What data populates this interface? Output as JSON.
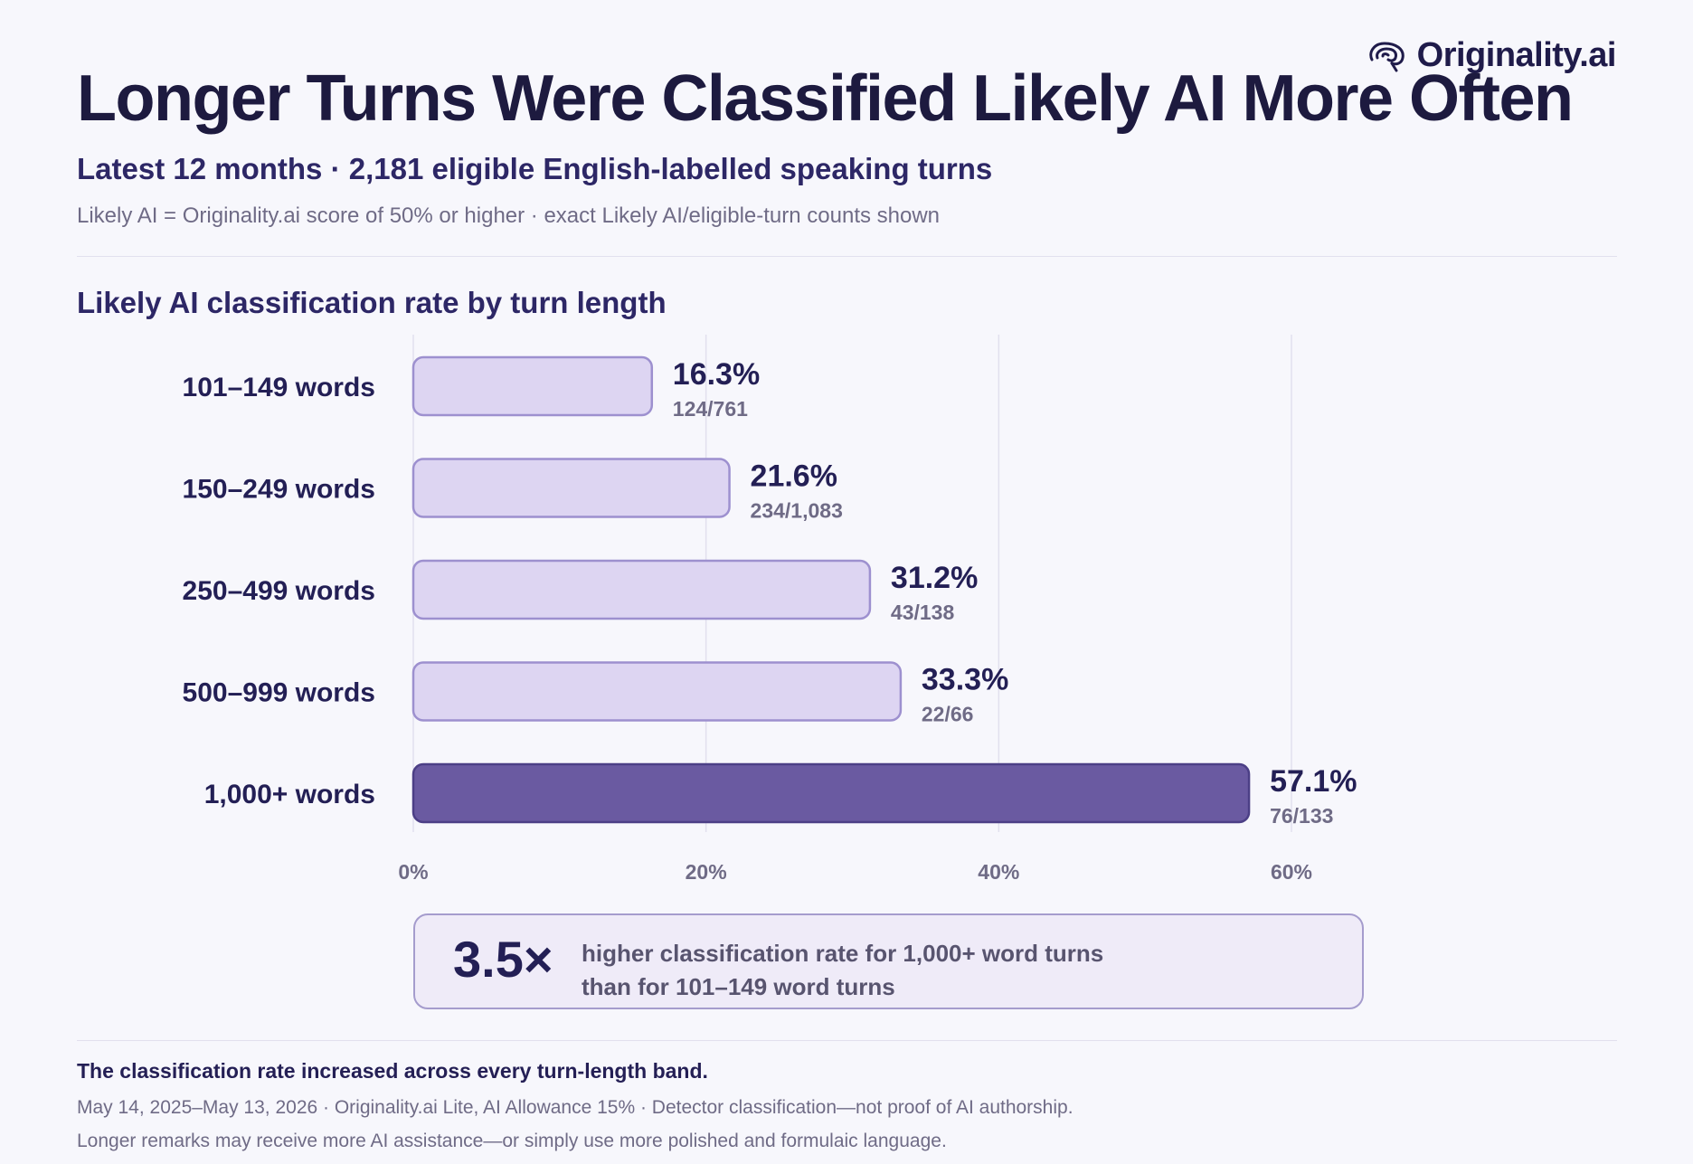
{
  "brand": {
    "name": "Originality.ai",
    "logo_icon": "brain-swirl-icon"
  },
  "header": {
    "title": "Longer Turns Were Classified Likely AI More Often",
    "subtitle": "Latest 12 months · 2,181 eligible English-labelled speaking turns",
    "note": "Likely AI = Originality.ai score of 50% or higher · exact Likely AI/eligible-turn counts shown"
  },
  "chart_title": "Likely AI classification rate by turn length",
  "chart_data": {
    "type": "bar",
    "orientation": "horizontal",
    "title": "Likely AI classification rate by turn length",
    "categories": [
      "101–149 words",
      "150–249 words",
      "250–499 words",
      "500–999 words",
      "1,000+ words"
    ],
    "values": [
      16.3,
      21.6,
      31.2,
      33.3,
      57.1
    ],
    "value_labels": [
      "16.3%",
      "21.6%",
      "31.2%",
      "33.3%",
      "57.1%"
    ],
    "count_labels": [
      "124/761",
      "234/1,083",
      "43/138",
      "22/66",
      "76/133"
    ],
    "highlight_index": 4,
    "xlim": [
      0,
      60
    ],
    "x_ticks": [
      0,
      20,
      40,
      60
    ],
    "x_tick_labels": [
      "0%",
      "20%",
      "40%",
      "60%"
    ],
    "grid": true,
    "colors": {
      "bar": "#ddd5f2",
      "bar_border": "#9d90cf",
      "highlight": "#6a5aa1",
      "highlight_border": "#4c3f86",
      "grid": "#e2e0ee",
      "category_text": "#231f55",
      "value_text": "#231f55",
      "count_text": "#6f6b86",
      "tick_text": "#6f6b86"
    }
  },
  "callout": {
    "value": "3.5×",
    "text_line1": "higher classification rate for 1,000+ word turns",
    "text_line2": "than for 101–149 word turns"
  },
  "footer": {
    "lead": "The classification rate increased across every turn-length band.",
    "line1": "May 14, 2025–May 13, 2026 · Originality.ai Lite, AI Allowance 15% · Detector classification—not proof of AI authorship.",
    "line2": "Longer remarks may receive more AI assistance—or simply use more polished and formulaic language."
  }
}
